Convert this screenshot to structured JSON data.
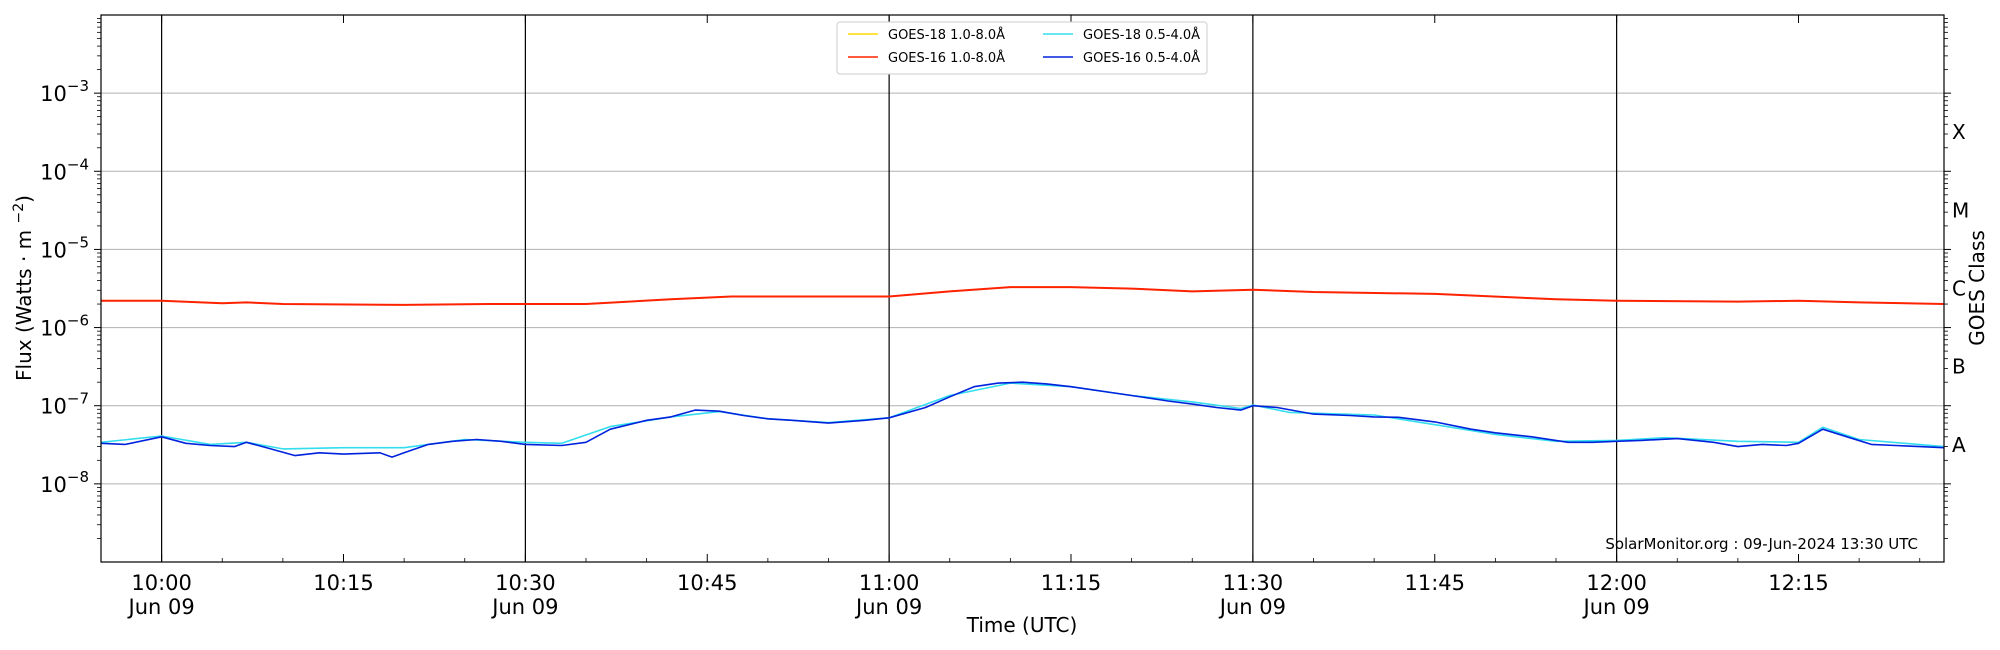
{
  "chart_data": {
    "type": "line",
    "xlabel": "Time (UTC)",
    "ylabel": "Flux (Watts · m⁻²)",
    "y2label": "GOES Class",
    "yscale": "log",
    "xlim": [
      "09:55",
      "12:27"
    ],
    "ylim": [
      1e-09,
      0.01
    ],
    "grid": "horizontal at each decade",
    "legend_position": "top-center",
    "x_ticks": [
      {
        "time": "10:00",
        "label": "10:00",
        "sublabel": "Jun 09",
        "major": true
      },
      {
        "time": "10:15",
        "label": "10:15",
        "sublabel": "",
        "major": false
      },
      {
        "time": "10:30",
        "label": "10:30",
        "sublabel": "Jun 09",
        "major": true
      },
      {
        "time": "10:45",
        "label": "10:45",
        "sublabel": "",
        "major": false
      },
      {
        "time": "11:00",
        "label": "11:00",
        "sublabel": "Jun 09",
        "major": true
      },
      {
        "time": "11:15",
        "label": "11:15",
        "sublabel": "",
        "major": false
      },
      {
        "time": "11:30",
        "label": "11:30",
        "sublabel": "Jun 09",
        "major": true
      },
      {
        "time": "11:45",
        "label": "11:45",
        "sublabel": "",
        "major": false
      },
      {
        "time": "12:00",
        "label": "12:00",
        "sublabel": "Jun 09",
        "major": true
      },
      {
        "time": "12:15",
        "label": "12:15",
        "sublabel": "",
        "major": false
      }
    ],
    "y_ticks": [
      {
        "exp": -8,
        "label": "10",
        "sup": "−8"
      },
      {
        "exp": -7,
        "label": "10",
        "sup": "−7"
      },
      {
        "exp": -6,
        "label": "10",
        "sup": "−6"
      },
      {
        "exp": -5,
        "label": "10",
        "sup": "−5"
      },
      {
        "exp": -4,
        "label": "10",
        "sup": "−4"
      },
      {
        "exp": -3,
        "label": "10",
        "sup": "−3"
      }
    ],
    "goes_classes": [
      {
        "label": "A",
        "exp": -7.5
      },
      {
        "label": "B",
        "exp": -6.5
      },
      {
        "label": "C",
        "exp": -5.5
      },
      {
        "label": "M",
        "exp": -4.5
      },
      {
        "label": "X",
        "exp": -3.5
      }
    ],
    "annotation": "SolarMonitor.org : 09-Jun-2024 13:30 UTC",
    "series": [
      {
        "name": "GOES-18 1.0-8.0Å",
        "color": "#ffd700",
        "visible_in_plot": false,
        "x": [],
        "y": []
      },
      {
        "name": "GOES-16 1.0-8.0Å",
        "color": "#ff2200",
        "x": [
          "09:55",
          "10:00",
          "10:05",
          "10:07",
          "10:10",
          "10:20",
          "10:27",
          "10:35",
          "10:42",
          "10:47",
          "11:00",
          "11:05",
          "11:10",
          "11:15",
          "11:20",
          "11:25",
          "11:30",
          "11:35",
          "11:45",
          "11:55",
          "12:00",
          "12:10",
          "12:15",
          "12:20",
          "12:27"
        ],
        "y": [
          2.2e-06,
          2.2e-06,
          2.05e-06,
          2.1e-06,
          2e-06,
          1.95e-06,
          2e-06,
          2e-06,
          2.3e-06,
          2.5e-06,
          2.5e-06,
          2.9e-06,
          3.3e-06,
          3.3e-06,
          3.15e-06,
          2.9e-06,
          3.05e-06,
          2.85e-06,
          2.7e-06,
          2.3e-06,
          2.2e-06,
          2.15e-06,
          2.2e-06,
          2.1e-06,
          2e-06
        ]
      },
      {
        "name": "GOES-18 0.5-4.0Å",
        "color": "#33ddee",
        "x": [
          "09:55",
          "10:00",
          "10:04",
          "10:07",
          "10:10",
          "10:15",
          "10:20",
          "10:25",
          "10:30",
          "10:33",
          "10:37",
          "10:42",
          "10:46",
          "10:50",
          "10:55",
          "11:00",
          "11:05",
          "11:10",
          "11:15",
          "11:20",
          "11:25",
          "11:29",
          "11:30",
          "11:33",
          "11:40",
          "11:46",
          "11:50",
          "11:55",
          "12:00",
          "12:04",
          "12:10",
          "12:15",
          "12:17",
          "12:20",
          "12:27"
        ],
        "y": [
          3.4e-08,
          4.1e-08,
          3.2e-08,
          3.4e-08,
          2.8e-08,
          2.9e-08,
          2.9e-08,
          3.7e-08,
          3.4e-08,
          3.3e-08,
          5.4e-08,
          7.2e-08,
          8.4e-08,
          6.8e-08,
          6.1e-08,
          7e-08,
          1.35e-07,
          1.95e-07,
          1.75e-07,
          1.35e-07,
          1.12e-07,
          9.2e-08,
          1.02e-07,
          8.2e-08,
          7.6e-08,
          5.4e-08,
          4.3e-08,
          3.5e-08,
          3.6e-08,
          3.9e-08,
          3.5e-08,
          3.4e-08,
          5.3e-08,
          3.7e-08,
          3e-08
        ]
      },
      {
        "name": "GOES-16 0.5-4.0Å",
        "color": "#0022dd",
        "x": [
          "09:55",
          "09:57",
          "10:00",
          "10:02",
          "10:04",
          "10:06",
          "10:07",
          "10:09",
          "10:11",
          "10:13",
          "10:15",
          "10:18",
          "10:19",
          "10:20",
          "10:22",
          "10:24",
          "10:26",
          "10:28",
          "10:30",
          "10:33",
          "10:35",
          "10:37",
          "10:40",
          "10:42",
          "10:44",
          "10:46",
          "10:48",
          "10:50",
          "10:52",
          "10:55",
          "10:58",
          "11:00",
          "11:03",
          "11:05",
          "11:07",
          "11:09",
          "11:11",
          "11:13",
          "11:15",
          "11:18",
          "11:20",
          "11:23",
          "11:25",
          "11:27",
          "11:29",
          "11:30",
          "11:32",
          "11:35",
          "11:38",
          "11:40",
          "11:42",
          "11:45",
          "11:48",
          "11:50",
          "11:53",
          "11:56",
          "11:58",
          "12:00",
          "12:02",
          "12:05",
          "12:08",
          "12:10",
          "12:12",
          "12:14",
          "12:15",
          "12:17",
          "12:19",
          "12:21",
          "12:23",
          "12:25",
          "12:27"
        ],
        "y": [
          3.3e-08,
          3.2e-08,
          4e-08,
          3.3e-08,
          3.1e-08,
          3e-08,
          3.4e-08,
          2.8e-08,
          2.3e-08,
          2.5e-08,
          2.4e-08,
          2.5e-08,
          2.2e-08,
          2.5e-08,
          3.2e-08,
          3.5e-08,
          3.7e-08,
          3.5e-08,
          3.2e-08,
          3.1e-08,
          3.4e-08,
          5e-08,
          6.5e-08,
          7.2e-08,
          8.8e-08,
          8.5e-08,
          7.5e-08,
          6.8e-08,
          6.5e-08,
          6e-08,
          6.5e-08,
          7e-08,
          9.5e-08,
          1.3e-07,
          1.75e-07,
          1.95e-07,
          2e-07,
          1.9e-07,
          1.75e-07,
          1.5e-07,
          1.35e-07,
          1.15e-07,
          1.05e-07,
          9.5e-08,
          8.8e-08,
          1e-07,
          9.5e-08,
          7.8e-08,
          7.5e-08,
          7.2e-08,
          7.1e-08,
          6.2e-08,
          5e-08,
          4.5e-08,
          4e-08,
          3.4e-08,
          3.4e-08,
          3.5e-08,
          3.6e-08,
          3.8e-08,
          3.4e-08,
          3e-08,
          3.2e-08,
          3.1e-08,
          3.3e-08,
          5e-08,
          4e-08,
          3.2e-08,
          3.1e-08,
          3e-08,
          2.9e-08
        ]
      }
    ]
  }
}
